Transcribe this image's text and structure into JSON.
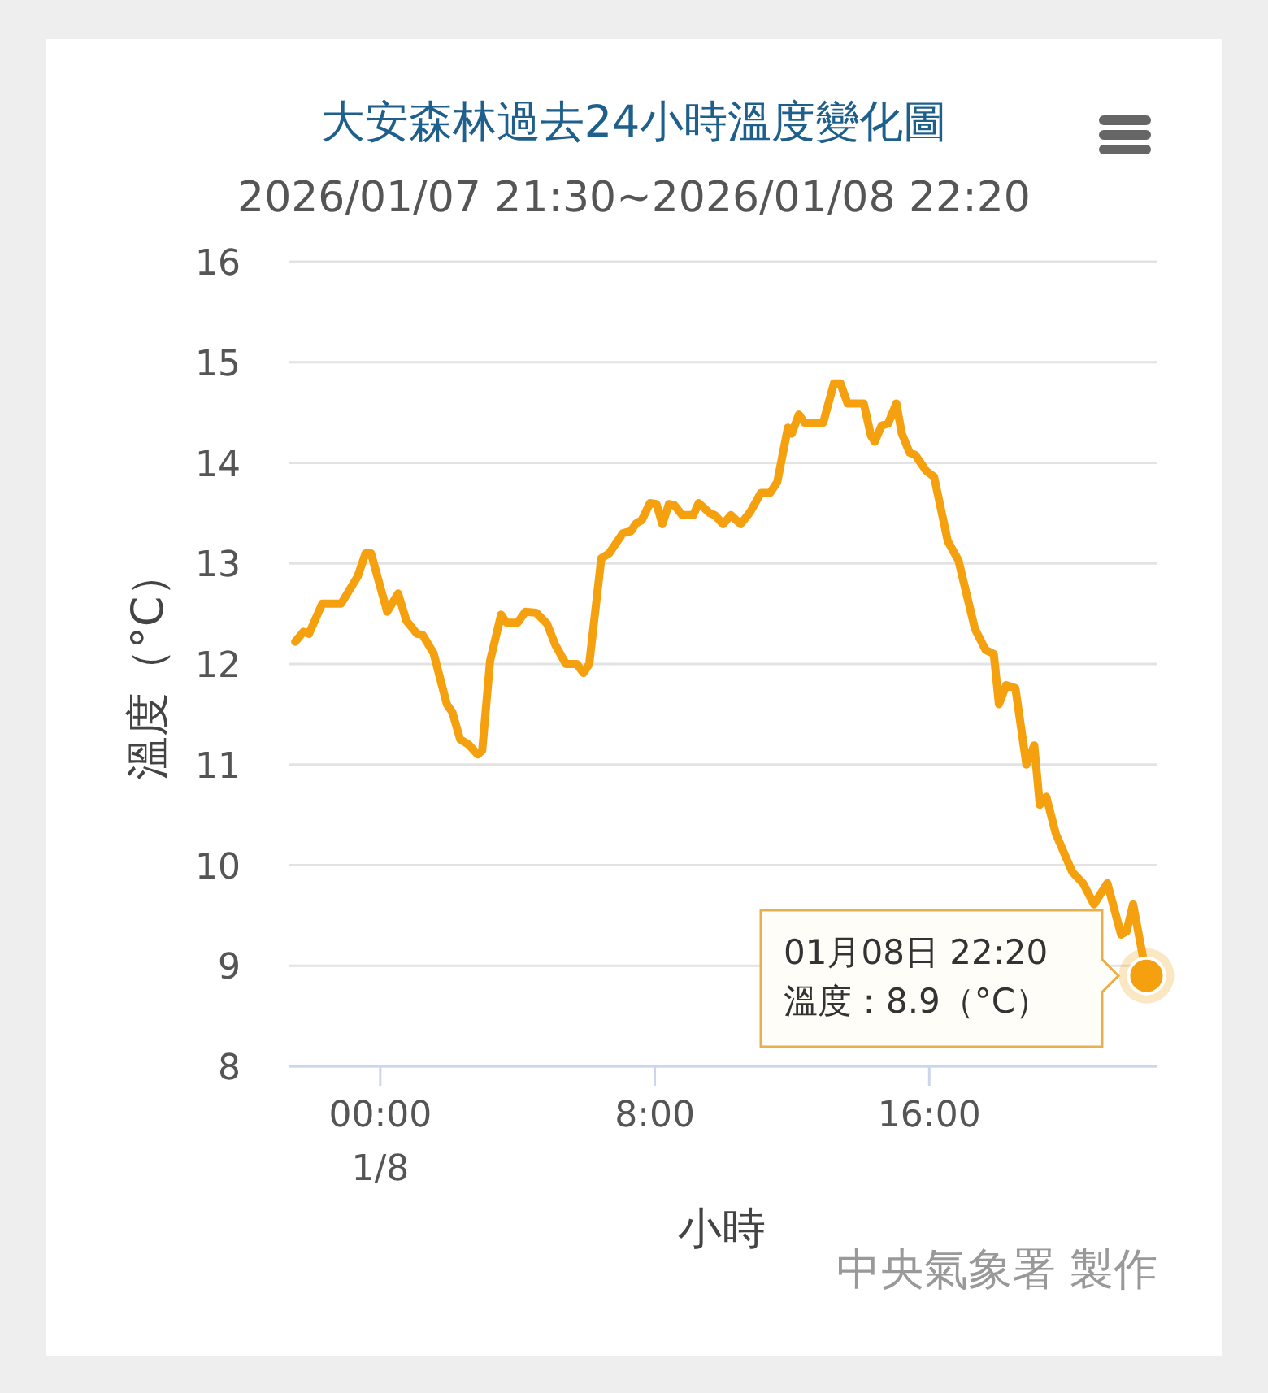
{
  "chart_data": {
    "type": "line",
    "title": "大安森林過去24小時溫度變化圖",
    "subtitle": "2026/01/07 21:30~2026/01/08 22:20",
    "xlabel": "小時",
    "ylabel": "溫度（°C）",
    "xlim": [
      -2.65,
      22.65
    ],
    "xticks": [
      {
        "value": 0,
        "label": "00:00\n1/8"
      },
      {
        "value": 8,
        "label": "8:00"
      },
      {
        "value": 16,
        "label": "16:00"
      }
    ],
    "ylim": [
      8,
      16
    ],
    "yticks": [
      8,
      9,
      10,
      11,
      12,
      13,
      14,
      15,
      16
    ],
    "grid": "y",
    "marker": "none",
    "line_style": "solid",
    "series": [
      {
        "color": "#f5a10f",
        "x": [
          -2.48,
          -2.24,
          -2.08,
          -1.69,
          -1.14,
          -0.66,
          -0.43,
          -0.27,
          0.2,
          0.52,
          0.76,
          1.07,
          1.23,
          1.55,
          1.94,
          2.1,
          2.33,
          2.57,
          2.84,
          2.97,
          3.2,
          3.52,
          3.68,
          4.0,
          4.23,
          4.54,
          4.86,
          5.1,
          5.41,
          5.73,
          5.92,
          6.09,
          6.44,
          6.67,
          7.07,
          7.3,
          7.46,
          7.62,
          7.86,
          8.05,
          8.22,
          8.41,
          8.57,
          8.8,
          9.12,
          9.28,
          9.6,
          9.75,
          9.99,
          10.22,
          10.5,
          10.78,
          11.09,
          11.36,
          11.57,
          11.88,
          11.99,
          12.2,
          12.36,
          12.91,
          13.22,
          13.41,
          13.62,
          14.09,
          14.3,
          14.41,
          14.61,
          14.8,
          15.04,
          15.2,
          15.43,
          15.59,
          15.91,
          16.14,
          16.54,
          16.85,
          17.33,
          17.64,
          17.88,
          18.03,
          18.24,
          18.51,
          18.83,
          19.06,
          19.22,
          19.41,
          19.69,
          20.17,
          20.48,
          20.8,
          21.19,
          21.59,
          21.75,
          21.94,
          22.33
        ],
        "values": [
          12.22,
          12.32,
          12.3,
          12.6,
          12.6,
          12.87,
          13.1,
          13.1,
          12.52,
          12.7,
          12.43,
          12.3,
          12.29,
          12.11,
          11.6,
          11.52,
          11.25,
          11.2,
          11.1,
          11.14,
          12.03,
          12.49,
          12.41,
          12.41,
          12.52,
          12.51,
          12.4,
          12.19,
          12.0,
          12.0,
          11.91,
          12.0,
          13.05,
          13.1,
          13.3,
          13.32,
          13.4,
          13.43,
          13.6,
          13.59,
          13.39,
          13.59,
          13.58,
          13.48,
          13.48,
          13.6,
          13.5,
          13.48,
          13.39,
          13.48,
          13.39,
          13.51,
          13.7,
          13.7,
          13.81,
          14.35,
          14.29,
          14.48,
          14.4,
          14.4,
          14.79,
          14.79,
          14.59,
          14.59,
          14.27,
          14.21,
          14.37,
          14.39,
          14.59,
          14.29,
          14.1,
          14.08,
          13.92,
          13.86,
          13.22,
          13.03,
          12.35,
          12.14,
          12.1,
          11.6,
          11.79,
          11.76,
          11.0,
          11.19,
          10.6,
          10.68,
          10.31,
          9.93,
          9.82,
          9.61,
          9.82,
          9.31,
          9.34,
          9.61,
          8.9
        ]
      }
    ],
    "annotations": [
      {
        "text": "01月08日 22:20\n溫度：8.9（°C）",
        "x": 22.33,
        "y": 8.9
      },
      "中央氣象署 製作"
    ]
  }
}
